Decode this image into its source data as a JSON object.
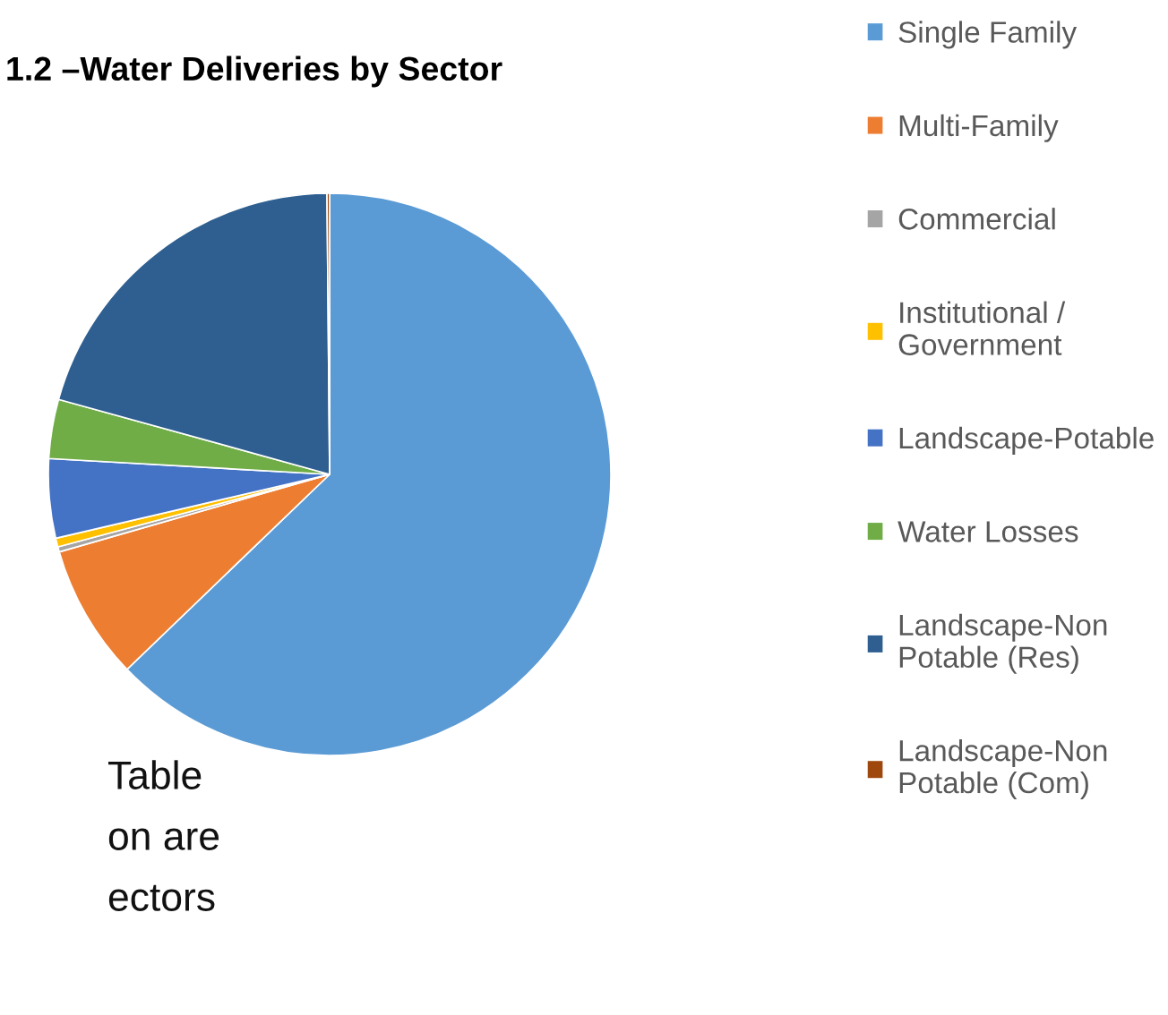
{
  "chart_data": {
    "type": "pie",
    "title": "1.2 –Water Deliveries by Sector",
    "categories": [
      "Single Family",
      "Multi-Family",
      "Commercial",
      "Institutional /\nGovernment",
      "Landscape-Potable",
      "Water Losses",
      "Landscape-Non\nPotable (Res)",
      "Landscape-Non\nPotable (Com)"
    ],
    "values": [
      62.8,
      7.75,
      0.3,
      0.5,
      4.55,
      3.4,
      20.55,
      0.15
    ],
    "colors": [
      "#5b9bd5",
      "#ed7d31",
      "#a5a5a5",
      "#ffc000",
      "#4472c4",
      "#70ad47",
      "#2e5f90",
      "#9e480e"
    ],
    "legend": "right",
    "annotations": [
      "Table",
      "on are",
      "ectors"
    ]
  }
}
